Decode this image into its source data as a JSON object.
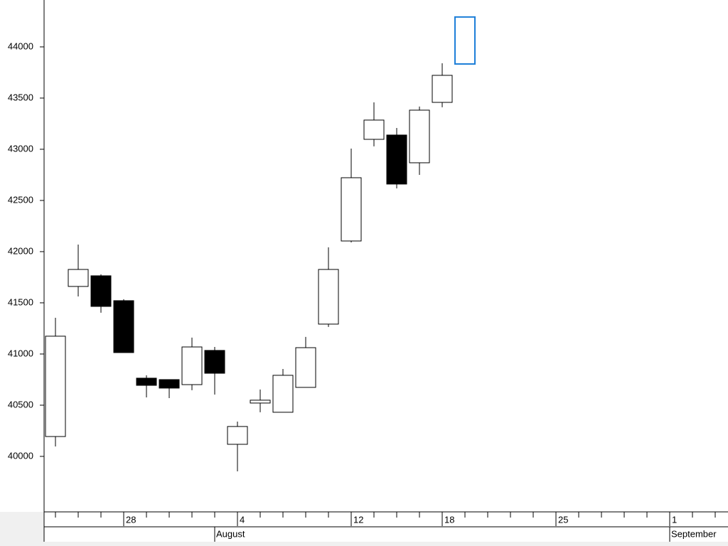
{
  "chart_data": {
    "type": "candlestick",
    "categories": [
      null,
      null,
      null,
      "28",
      null,
      null,
      null,
      null,
      "4",
      null,
      null,
      null,
      null,
      "12",
      null,
      null,
      null,
      "18",
      null,
      null,
      null,
      null,
      "25",
      null,
      null,
      null,
      null,
      "1",
      null,
      null
    ],
    "months": [
      {
        "label": "August",
        "category": 7
      },
      {
        "label": "September",
        "category": 27
      }
    ],
    "open": [
      40194,
      41660,
      41764,
      41521,
      40764,
      40750,
      40701,
      41035,
      40118,
      40521,
      40431,
      40674,
      41292,
      42104,
      43097,
      43139,
      42868,
      43458,
      43833,
      null,
      null,
      null,
      null,
      null,
      null,
      null,
      null,
      null,
      null,
      null
    ],
    "high": [
      41354,
      42069,
      41778,
      41535,
      40792,
      40750,
      41160,
      41069,
      40340,
      40653,
      40854,
      41167,
      42042,
      43007,
      43458,
      43208,
      43417,
      43840,
      44292,
      null,
      null,
      null,
      null,
      null,
      null,
      null,
      null,
      null,
      null,
      null
    ],
    "low": [
      40097,
      41562,
      41403,
      41014,
      40576,
      40569,
      40646,
      40604,
      39854,
      40431,
      40431,
      40674,
      41264,
      42090,
      43028,
      42618,
      42750,
      43410,
      43833,
      null,
      null,
      null,
      null,
      null,
      null,
      null,
      null,
      null,
      null,
      null
    ],
    "close": [
      41174,
      41826,
      41465,
      41014,
      40694,
      40667,
      41069,
      40812,
      40292,
      40549,
      40792,
      41062,
      41826,
      42722,
      43285,
      42660,
      43382,
      43722,
      44292,
      null,
      null,
      null,
      null,
      null,
      null,
      null,
      null,
      null,
      null,
      null
    ],
    "up_color": "#ffffff",
    "down_color": "#000000",
    "highlight": 18,
    "highlight_color": "#1e7fd8",
    "ylim": [
      39458,
      44458
    ],
    "yticks": [
      40000,
      40500,
      41000,
      41500,
      42000,
      42500,
      43000,
      43500,
      44000
    ]
  }
}
